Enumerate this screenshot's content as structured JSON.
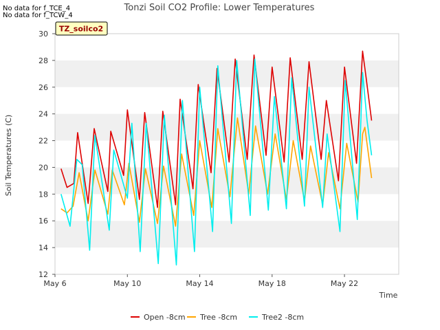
{
  "header": {
    "nodata_lines": [
      "No data for f_TCE_4",
      "No data for f_TCW_4"
    ],
    "badge": "TZ_soilco2"
  },
  "colors": {
    "Open -8cm": "#dd0000",
    "Tree -8cm": "#ffa500",
    "Tree2 -8cm": "#00eeee",
    "band": "#f0f0f0",
    "badge_fill": "#ffffc0",
    "badge_text": "#990000"
  },
  "chart_data": {
    "type": "line",
    "title": "Tonzi Soil CO2 Profile: Lower Temperatures",
    "xlabel": "Time",
    "ylabel": "Soil Temperatures (C)",
    "xlim": [
      "2024-05-06",
      "2024-05-25"
    ],
    "ylim": [
      12,
      30
    ],
    "yticks": [
      12,
      14,
      16,
      18,
      20,
      22,
      24,
      26,
      28,
      30
    ],
    "xticks": [
      {
        "date": "2024-05-06",
        "label": "May 6"
      },
      {
        "date": "2024-05-10",
        "label": "May 10"
      },
      {
        "date": "2024-05-14",
        "label": "May 14"
      },
      {
        "date": "2024-05-18",
        "label": "May 18"
      },
      {
        "date": "2024-05-22",
        "label": "May 22"
      }
    ],
    "grid": "horizontal bands",
    "legend": "bottom-center",
    "series": [
      {
        "name": "Open -8cm",
        "x": [
          "2024-05-06 08:00",
          "2024-05-06 16:00",
          "2024-05-07 01:00",
          "2024-05-07 06:00",
          "2024-05-07 20:00",
          "2024-05-08 04:00",
          "2024-05-08 22:00",
          "2024-05-09 02:00",
          "2024-05-09 19:00",
          "2024-05-10 00:00",
          "2024-05-10 16:00",
          "2024-05-10 23:00",
          "2024-05-11 16:00",
          "2024-05-11 23:00",
          "2024-05-12 16:00",
          "2024-05-12 22:00",
          "2024-05-13 15:00",
          "2024-05-13 22:00",
          "2024-05-14 15:00",
          "2024-05-14 23:00",
          "2024-05-15 15:00",
          "2024-05-15 23:00",
          "2024-05-16 15:00",
          "2024-05-17 00:00",
          "2024-05-17 16:00",
          "2024-05-18 00:00",
          "2024-05-18 16:00",
          "2024-05-19 00:00",
          "2024-05-19 16:00",
          "2024-05-20 01:00",
          "2024-05-20 17:00",
          "2024-05-21 00:00",
          "2024-05-21 16:00",
          "2024-05-22 00:00",
          "2024-05-22 16:00",
          "2024-05-23 00:00",
          "2024-05-23 04:00",
          "2024-05-23 12:00"
        ],
        "y": [
          19.9,
          18.5,
          18.8,
          22.6,
          17.3,
          22.9,
          18.2,
          22.7,
          19.4,
          24.3,
          17.6,
          24.1,
          17.0,
          24.2,
          17.2,
          25.1,
          18.4,
          26.2,
          19.6,
          27.4,
          20.4,
          28.1,
          20.6,
          28.4,
          20.9,
          27.5,
          20.4,
          28.2,
          20.6,
          27.9,
          20.6,
          25.0,
          19.0,
          27.5,
          20.3,
          28.7,
          27.0,
          23.5
        ]
      },
      {
        "name": "Tree -8cm",
        "x": [
          "2024-05-06 08:00",
          "2024-05-06 16:00",
          "2024-05-07 00:00",
          "2024-05-07 08:00",
          "2024-05-07 20:00",
          "2024-05-08 05:00",
          "2024-05-08 22:00",
          "2024-05-09 04:00",
          "2024-05-09 20:00",
          "2024-05-10 02:00",
          "2024-05-10 16:00",
          "2024-05-11 00:00",
          "2024-05-11 16:00",
          "2024-05-12 00:00",
          "2024-05-12 16:00",
          "2024-05-13 00:00",
          "2024-05-13 16:00",
          "2024-05-14 00:00",
          "2024-05-14 16:00",
          "2024-05-15 00:00",
          "2024-05-15 16:00",
          "2024-05-16 02:00",
          "2024-05-16 17:00",
          "2024-05-17 02:00",
          "2024-05-17 18:00",
          "2024-05-18 04:00",
          "2024-05-18 19:00",
          "2024-05-19 04:00",
          "2024-05-19 19:00",
          "2024-05-20 03:00",
          "2024-05-20 19:00",
          "2024-05-21 03:00",
          "2024-05-21 18:00",
          "2024-05-22 03:00",
          "2024-05-22 18:00",
          "2024-05-23 00:00",
          "2024-05-23 03:00",
          "2024-05-23 12:00"
        ],
        "y": [
          16.9,
          16.6,
          17.1,
          19.6,
          16.0,
          19.8,
          16.5,
          19.8,
          17.2,
          20.3,
          15.9,
          19.9,
          15.8,
          20.1,
          15.6,
          21.0,
          16.4,
          22.0,
          17.0,
          22.9,
          17.8,
          23.7,
          18.0,
          23.1,
          18.0,
          22.5,
          17.6,
          22.0,
          17.5,
          21.6,
          17.2,
          21.1,
          16.9,
          21.8,
          17.4,
          22.5,
          23.0,
          19.2
        ]
      },
      {
        "name": "Tree2 -8cm",
        "x": [
          "2024-05-06 08:00",
          "2024-05-06 20:00",
          "2024-05-07 05:00",
          "2024-05-07 12:00",
          "2024-05-07 22:00",
          "2024-05-08 05:00",
          "2024-05-09 00:00",
          "2024-05-09 06:00",
          "2024-05-10 00:00",
          "2024-05-10 06:00",
          "2024-05-10 17:00",
          "2024-05-11 01:00",
          "2024-05-11 17:00",
          "2024-05-12 01:00",
          "2024-05-12 17:00",
          "2024-05-13 01:00",
          "2024-05-13 17:00",
          "2024-05-14 00:00",
          "2024-05-14 17:00",
          "2024-05-15 00:00",
          "2024-05-15 18:00",
          "2024-05-16 01:00",
          "2024-05-16 19:00",
          "2024-05-17 01:00",
          "2024-05-17 19:00",
          "2024-05-18 03:00",
          "2024-05-18 19:00",
          "2024-05-19 02:00",
          "2024-05-19 19:00",
          "2024-05-20 01:00",
          "2024-05-20 19:00",
          "2024-05-21 01:00",
          "2024-05-21 18:00",
          "2024-05-22 01:00",
          "2024-05-22 17:00",
          "2024-05-23 00:00",
          "2024-05-23 06:00",
          "2024-05-23 12:00"
        ],
        "y": [
          18.0,
          15.6,
          20.6,
          20.2,
          13.8,
          22.4,
          15.3,
          21.3,
          17.7,
          23.3,
          13.7,
          23.3,
          12.8,
          23.9,
          12.7,
          25.0,
          13.7,
          26.0,
          15.2,
          27.6,
          15.8,
          28.0,
          16.4,
          28.1,
          16.8,
          25.3,
          16.9,
          26.7,
          17.1,
          26.0,
          17.0,
          22.5,
          15.2,
          26.5,
          16.1,
          27.1,
          23.5,
          20.9
        ]
      }
    ]
  }
}
